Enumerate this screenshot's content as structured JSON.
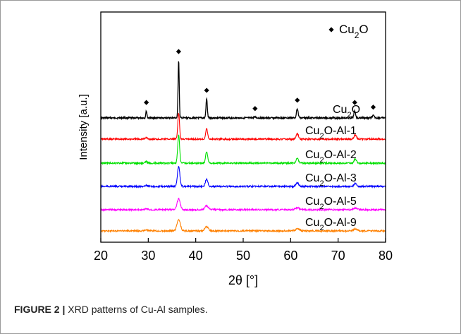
{
  "caption": {
    "label": "FIGURE 2 |",
    "text": " XRD patterns of Cu-Al samples."
  },
  "chart_data": {
    "type": "line",
    "xlabel": "2θ [°]",
    "ylabel": "Intensity [a.u.]",
    "xlim": [
      20,
      80
    ],
    "xticks": [
      20,
      30,
      40,
      50,
      60,
      70,
      80
    ],
    "grid": false,
    "legend": {
      "placement": "top-right",
      "marker": "◆",
      "base": "Cu",
      "sub": "2",
      "tail": "O"
    },
    "series": [
      {
        "name": "Cu2O",
        "display_base": "Cu",
        "display_sub": "2",
        "display_tail": "O",
        "color": "#000000",
        "peaks": [
          {
            "pos": 29.6,
            "height": 0.12,
            "width": 0.12
          },
          {
            "pos": 36.4,
            "height": 1.0,
            "width": 0.12
          },
          {
            "pos": 42.3,
            "height": 0.33,
            "width": 0.14
          },
          {
            "pos": 52.5,
            "height": 0.015,
            "width": 0.2
          },
          {
            "pos": 61.4,
            "height": 0.16,
            "width": 0.18
          },
          {
            "pos": 73.5,
            "height": 0.12,
            "width": 0.18
          },
          {
            "pos": 77.4,
            "height": 0.04,
            "width": 0.2
          }
        ],
        "markers": [
          29.6,
          36.4,
          42.3,
          52.5,
          61.4,
          73.5,
          77.4
        ]
      },
      {
        "name": "Cu2O-Al-1",
        "display_base": "Cu",
        "display_sub": "2",
        "display_tail": "O-Al-1",
        "color": "#ff0000",
        "peaks": [
          {
            "pos": 29.6,
            "height": 0.03,
            "width": 0.2
          },
          {
            "pos": 36.4,
            "height": 0.45,
            "width": 0.18
          },
          {
            "pos": 42.3,
            "height": 0.18,
            "width": 0.2
          },
          {
            "pos": 61.4,
            "height": 0.09,
            "width": 0.25
          },
          {
            "pos": 73.6,
            "height": 0.07,
            "width": 0.25
          }
        ]
      },
      {
        "name": "Cu2O-Al-2",
        "display_base": "Cu",
        "display_sub": "2",
        "display_tail": "O-Al-2",
        "color": "#00e000",
        "peaks": [
          {
            "pos": 29.6,
            "height": 0.03,
            "width": 0.2
          },
          {
            "pos": 36.4,
            "height": 0.48,
            "width": 0.2
          },
          {
            "pos": 42.3,
            "height": 0.2,
            "width": 0.22
          },
          {
            "pos": 61.4,
            "height": 0.08,
            "width": 0.25
          },
          {
            "pos": 73.6,
            "height": 0.07,
            "width": 0.25
          }
        ]
      },
      {
        "name": "Cu2O-Al-3",
        "display_base": "Cu",
        "display_sub": "2",
        "display_tail": "O-Al-3",
        "color": "#0000ff",
        "peaks": [
          {
            "pos": 29.6,
            "height": 0.02,
            "width": 0.25
          },
          {
            "pos": 36.4,
            "height": 0.35,
            "width": 0.25
          },
          {
            "pos": 42.3,
            "height": 0.13,
            "width": 0.26
          },
          {
            "pos": 61.4,
            "height": 0.06,
            "width": 0.3
          },
          {
            "pos": 73.6,
            "height": 0.05,
            "width": 0.3
          }
        ]
      },
      {
        "name": "Cu2O-Al-5",
        "display_base": "Cu",
        "display_sub": "2",
        "display_tail": "O-Al-5",
        "color": "#ff00ff",
        "peaks": [
          {
            "pos": 29.6,
            "height": 0.015,
            "width": 0.3
          },
          {
            "pos": 36.4,
            "height": 0.19,
            "width": 0.33
          },
          {
            "pos": 42.3,
            "height": 0.07,
            "width": 0.35
          },
          {
            "pos": 61.4,
            "height": 0.035,
            "width": 0.4
          },
          {
            "pos": 73.6,
            "height": 0.03,
            "width": 0.4
          }
        ]
      },
      {
        "name": "Cu2O-Al-9",
        "display_base": "Cu",
        "display_sub": "2",
        "display_tail": "O-Al-9",
        "color": "#ff8000",
        "peaks": [
          {
            "pos": 29.6,
            "height": 0.015,
            "width": 0.35
          },
          {
            "pos": 36.4,
            "height": 0.2,
            "width": 0.35
          },
          {
            "pos": 42.3,
            "height": 0.07,
            "width": 0.38
          },
          {
            "pos": 61.4,
            "height": 0.035,
            "width": 0.42
          },
          {
            "pos": 73.6,
            "height": 0.03,
            "width": 0.42
          }
        ]
      }
    ]
  }
}
